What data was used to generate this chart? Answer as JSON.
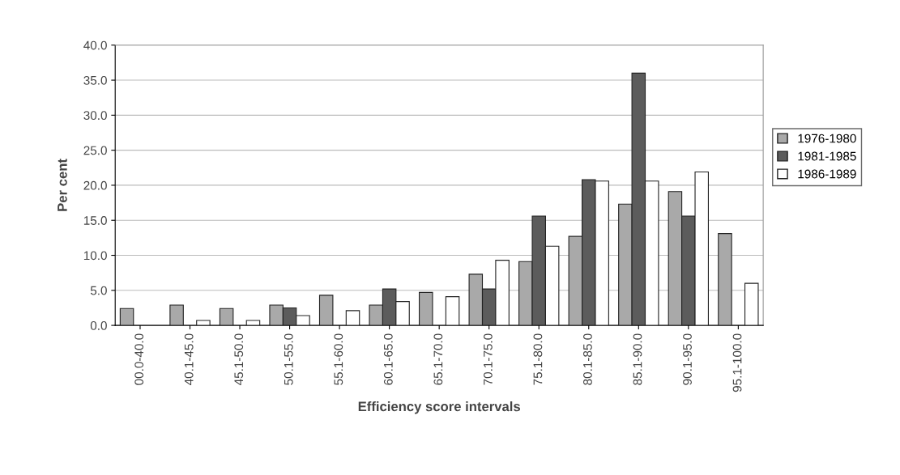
{
  "chart_data": {
    "type": "bar",
    "xlabel": "Efficiency score intervals",
    "ylabel": "Per cent",
    "categories": [
      "00.0-40.0",
      "40.1-45.0",
      "45.1-50.0",
      "50.1-55.0",
      "55.1-60.0",
      "60.1-65.0",
      "65.1-70.0",
      "70.1-75.0",
      "75.1-80.0",
      "80.1-85.0",
      "85.1-90.0",
      "90.1-95.0",
      "95.1-100.0"
    ],
    "series": [
      {
        "name": "1976-1980",
        "color": "#a9a9a9",
        "values": [
          2.4,
          2.9,
          2.4,
          2.9,
          4.3,
          2.9,
          4.7,
          7.3,
          9.1,
          12.7,
          17.3,
          19.1,
          13.1
        ]
      },
      {
        "name": "1981-1985",
        "color": "#5c5c5c",
        "values": [
          0,
          0,
          0,
          2.5,
          0,
          5.2,
          0,
          5.2,
          15.6,
          20.8,
          36.0,
          15.6,
          0
        ]
      },
      {
        "name": "1986-1989",
        "color": "#ffffff",
        "values": [
          0,
          0.7,
          0.7,
          1.4,
          2.1,
          3.4,
          4.1,
          9.3,
          11.3,
          20.6,
          20.6,
          21.9,
          6.0
        ]
      }
    ],
    "ylim": [
      0,
      40
    ],
    "yticks": [
      {
        "value": 0,
        "label": "0.0"
      },
      {
        "value": 5,
        "label": "5.0"
      },
      {
        "value": 10,
        "label": "10.0"
      },
      {
        "value": 15,
        "label": "15.0"
      },
      {
        "value": 20,
        "label": "20.0"
      },
      {
        "value": 25,
        "label": "25.0"
      },
      {
        "value": 30,
        "label": "30.0"
      },
      {
        "value": 35,
        "label": "35.0"
      },
      {
        "value": 40,
        "label": "40.0"
      }
    ],
    "grid": "y",
    "legend": "right"
  }
}
